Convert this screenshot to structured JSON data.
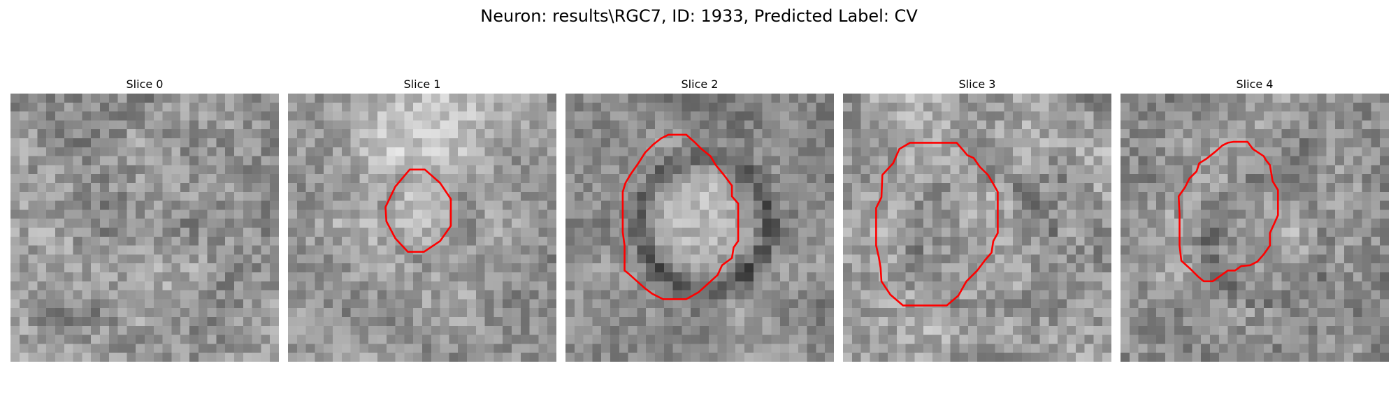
{
  "title": "Neuron: results\\RGC7, ID: 1933, Predicted Label: CV",
  "panels": [
    {
      "label": "Slice 0",
      "outline": false
    },
    {
      "label": "Slice 1",
      "outline": true
    },
    {
      "label": "Slice 2",
      "outline": true
    },
    {
      "label": "Slice 3",
      "outline": true
    },
    {
      "label": "Slice 4",
      "outline": true
    }
  ],
  "colors": {
    "outline": "#ff0000",
    "colormap": "grayscale"
  }
}
